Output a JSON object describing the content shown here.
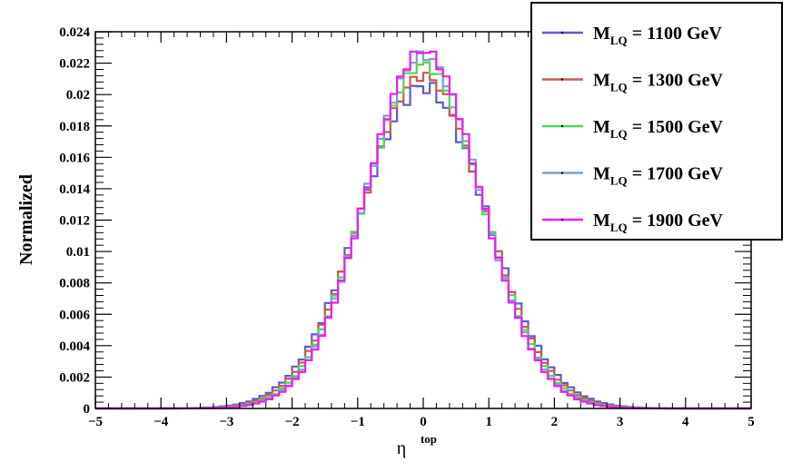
{
  "chart_data": {
    "type": "line",
    "step_histogram": true,
    "ylabel": "Normalized",
    "xlabel": {
      "base": "η",
      "superscript": "top"
    },
    "xlim": [
      -5,
      5
    ],
    "ylim": [
      0,
      0.024
    ],
    "x_ticks": [
      {
        "v": -5,
        "label": "−5"
      },
      {
        "v": -4,
        "label": "−4"
      },
      {
        "v": -3,
        "label": "−3"
      },
      {
        "v": -2,
        "label": "−2"
      },
      {
        "v": -1,
        "label": "−1"
      },
      {
        "v": 0,
        "label": "0"
      },
      {
        "v": 1,
        "label": "1"
      },
      {
        "v": 2,
        "label": "2"
      },
      {
        "v": 3,
        "label": "3"
      },
      {
        "v": 4,
        "label": "4"
      },
      {
        "v": 5,
        "label": "5"
      }
    ],
    "y_ticks": [
      {
        "v": 0,
        "label": "0"
      },
      {
        "v": 0.002,
        "label": "0.002"
      },
      {
        "v": 0.004,
        "label": "0.004"
      },
      {
        "v": 0.006,
        "label": "0.006"
      },
      {
        "v": 0.008,
        "label": "0.008"
      },
      {
        "v": 0.01,
        "label": "0.01"
      },
      {
        "v": 0.012,
        "label": "0.012"
      },
      {
        "v": 0.014,
        "label": "0.014"
      },
      {
        "v": 0.016,
        "label": "0.016"
      },
      {
        "v": 0.018,
        "label": "0.018"
      },
      {
        "v": 0.02,
        "label": "0.02"
      },
      {
        "v": 0.022,
        "label": "0.022"
      },
      {
        "v": 0.024,
        "label": "0.024"
      }
    ],
    "legend_position": "top-right",
    "bin_width": 0.1,
    "series": [
      {
        "name": "M_LQ = 1100 GeV",
        "label_main": "M",
        "label_sub": "LQ",
        "label_rest": " = 1100 GeV",
        "color": "#5a5ad8",
        "sigma": 0.96,
        "peak": 0.0205
      },
      {
        "name": "M_LQ = 1300 GeV",
        "label_main": "M",
        "label_sub": "LQ",
        "label_rest": " = 1300 GeV",
        "color": "#cc5a50",
        "sigma": 0.93,
        "peak": 0.0212
      },
      {
        "name": "M_LQ = 1500 GeV",
        "label_main": "M",
        "label_sub": "LQ",
        "label_rest": " = 1500 GeV",
        "color": "#55d655",
        "sigma": 0.9,
        "peak": 0.0219
      },
      {
        "name": "M_LQ = 1700 GeV",
        "label_main": "M",
        "label_sub": "LQ",
        "label_rest": " = 1700 GeV",
        "color": "#7b9fd6",
        "sigma": 0.88,
        "peak": 0.0225
      },
      {
        "name": "M_LQ = 1900 GeV",
        "label_main": "M",
        "label_sub": "LQ",
        "label_rest": " = 1900 GeV",
        "color": "#ee1cee",
        "sigma": 0.87,
        "peak": 0.0228
      }
    ]
  }
}
